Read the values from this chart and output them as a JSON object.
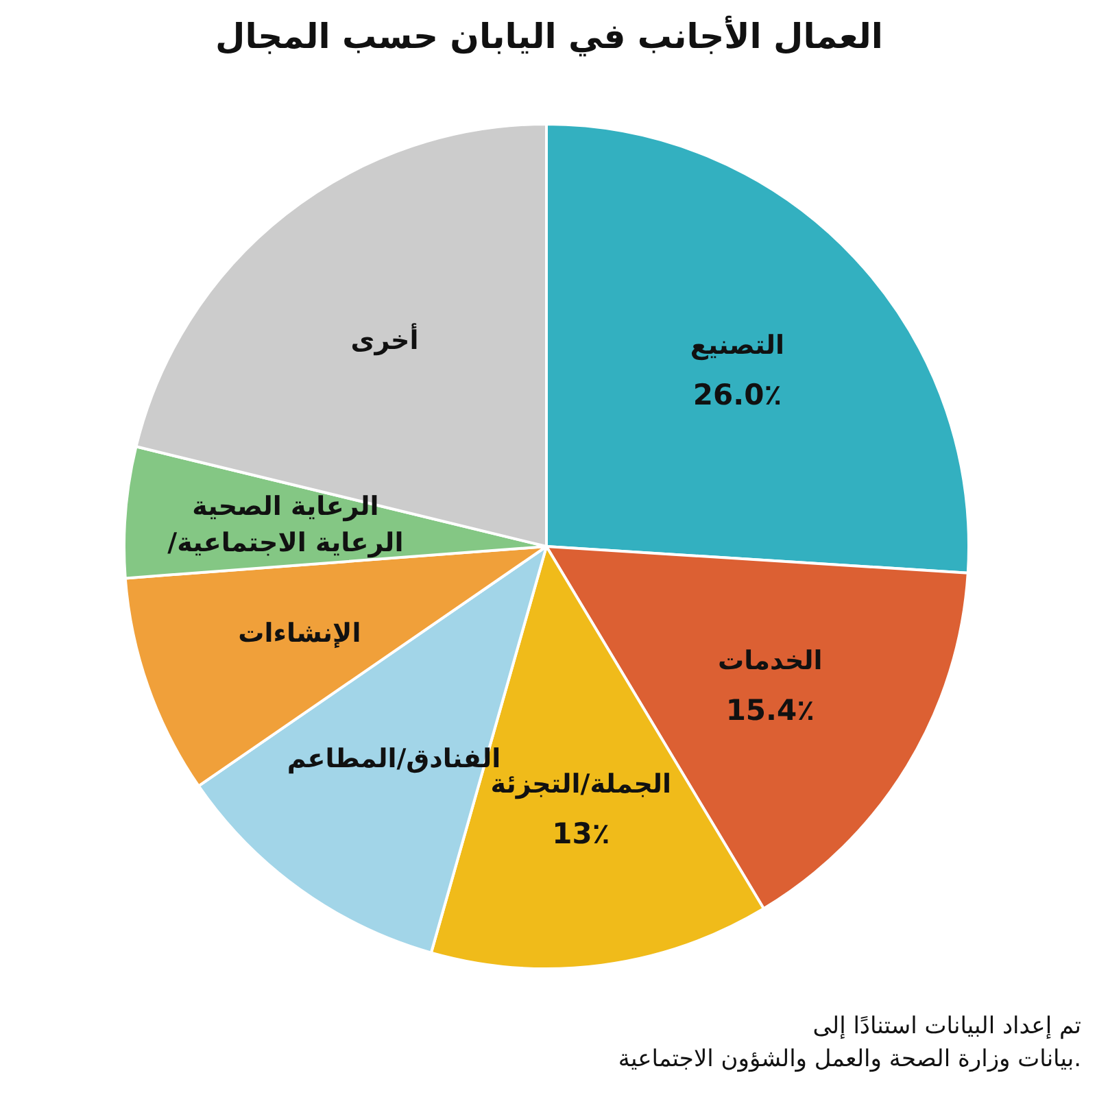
{
  "chart_data": {
    "type": "pie",
    "title": "العمال الأجانب في اليابان حسب المجال",
    "categories": [
      "التصنيع",
      "الخدمات",
      "الجملة/التجزئة",
      "الفنادق/المطاعم",
      "الإنشاءات",
      "الرعاية الصحية\n/الرعاية الاجتماعية",
      "أخرى"
    ],
    "values": [
      26.0,
      15.4,
      13,
      11.0,
      8.4,
      5.0,
      21.2
    ],
    "value_labels": [
      "26.0٪",
      "15.4٪",
      "13٪",
      null,
      null,
      null,
      null
    ],
    "colors": [
      "#33b0c0",
      "#dc6033",
      "#f0bb1a",
      "#a2d5e8",
      "#f0a03a",
      "#84c784",
      "#cccccc"
    ],
    "annotations": [
      "تم إعداد البيانات استنادًا إلى\nبيانات وزارة الصحة والعمل والشؤون الاجتماعية."
    ]
  }
}
